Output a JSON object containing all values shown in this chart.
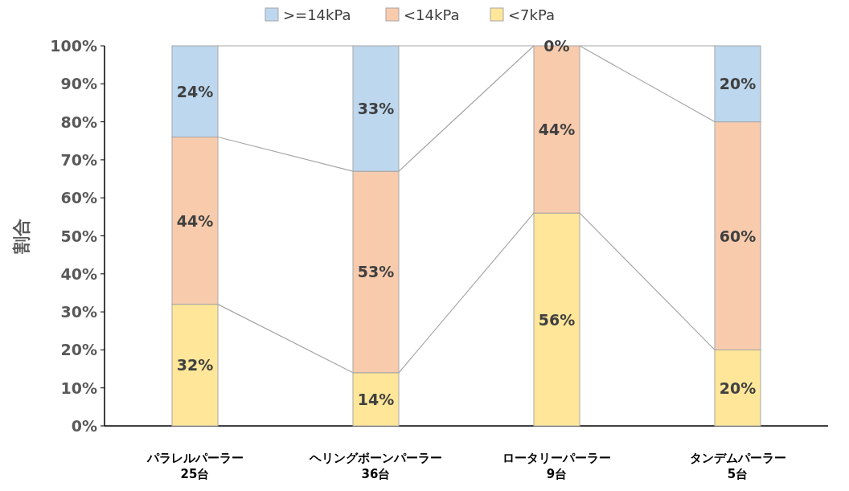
{
  "chart_data": {
    "type": "bar",
    "stacked": true,
    "ylabel": "割合",
    "categories": [
      "パラレルパーラー\n25台",
      "ヘリングボーンパーラー\n36台",
      "ロータリーパーラー\n9台",
      "タンデムパーラー\n5台"
    ],
    "series": [
      {
        "name": "<7kPa",
        "color": "#ffe699",
        "values": [
          32,
          14,
          56,
          20
        ],
        "value_labels": [
          "32%",
          "14%",
          "56%",
          "20%"
        ]
      },
      {
        "name": "<14kPa",
        "color": "#f8cbad",
        "values": [
          44,
          53,
          44,
          60
        ],
        "value_labels": [
          "44%",
          "53%",
          "44%",
          "60%"
        ]
      },
      {
        "name": ">=14kPa",
        "color": "#bdd7ee",
        "values": [
          24,
          33,
          0,
          20
        ],
        "value_labels": [
          "24%",
          "33%",
          "0%",
          "20%"
        ]
      }
    ],
    "ylim": [
      0,
      100
    ],
    "yticks": [
      {
        "value": 0,
        "label": "0%"
      },
      {
        "value": 10,
        "label": "10%"
      },
      {
        "value": 20,
        "label": "20%"
      },
      {
        "value": 30,
        "label": "30%"
      },
      {
        "value": 40,
        "label": "40%"
      },
      {
        "value": 50,
        "label": "50%"
      },
      {
        "value": 60,
        "label": "60%"
      },
      {
        "value": 70,
        "label": "70%"
      },
      {
        "value": 80,
        "label": "80%"
      },
      {
        "value": 90,
        "label": "90%"
      },
      {
        "value": 100,
        "label": "100%"
      }
    ],
    "legend": "top",
    "grid": false
  }
}
